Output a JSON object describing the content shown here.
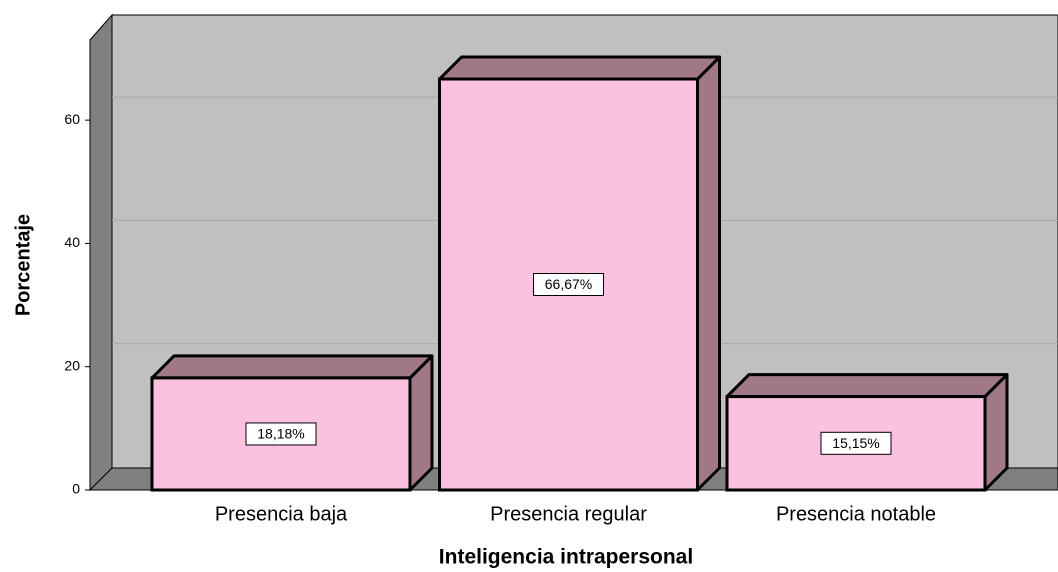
{
  "chart_data": {
    "type": "bar3d",
    "categories": [
      "Presencia baja",
      "Presencia regular",
      "Presencia notable"
    ],
    "values": [
      18.18,
      66.67,
      15.15
    ],
    "value_labels": [
      "18,18%",
      "66,67%",
      "15,15%"
    ],
    "x_label": "Inteligencia intrapersonal",
    "y_label": "Porcentaje",
    "color": "#fcc0e0",
    "side_color": "#a07888",
    "ylim": [
      0,
      73
    ],
    "yticks": [
      0,
      20,
      40,
      60
    ],
    "grid": true
  }
}
